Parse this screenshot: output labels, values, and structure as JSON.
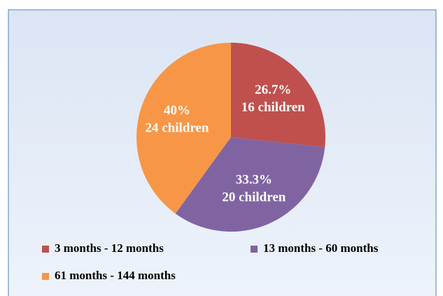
{
  "chart_data": {
    "type": "pie",
    "categories": [
      "3 months - 12 months",
      "13 months - 60 months",
      "61 months - 144 months"
    ],
    "values": [
      26.7,
      33.3,
      40
    ],
    "value_labels": [
      "26.7%",
      "33.3%",
      "40%"
    ],
    "count_labels": [
      "16 children",
      "20 children",
      "24 children"
    ],
    "colors": [
      "#c0504d",
      "#8064a2",
      "#f79646"
    ]
  }
}
